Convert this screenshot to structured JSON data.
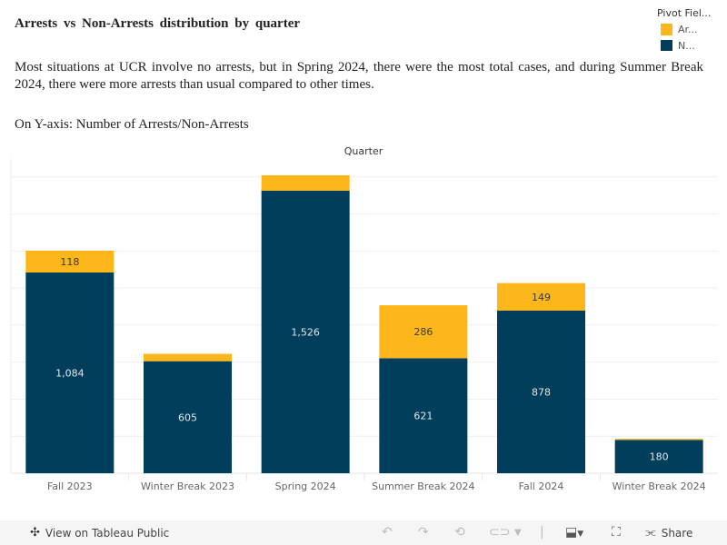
{
  "title": "Arrests vs Non-Arrests distribution by quarter",
  "description": "Most situations at UCR involve no arrests, but in Spring 2024, there were the most total cases, and during Summer Break 2024, there were more arrests than usual compared to other times.",
  "y_axis_note": "On Y-axis: Number of Arrests/Non-Arrests",
  "legend": {
    "title": "Pivot Fiel...",
    "items": [
      {
        "label": "Ar...",
        "color": "#fdb71b"
      },
      {
        "label": "N...",
        "color": "#013e5b"
      }
    ]
  },
  "footer": {
    "view_label": "View on Tableau Public",
    "view_icon": "tableau-logo-icon",
    "share_label": "Share",
    "icons": [
      "undo-icon",
      "redo-icon",
      "revert-icon",
      "refresh-icon",
      "dropdown-caret-icon",
      "download-icon",
      "fullscreen-icon",
      "share-icon"
    ]
  },
  "chart_data": {
    "type": "bar",
    "stacked": true,
    "title": "",
    "column_header": "Quarter",
    "xlabel": "",
    "ylabel": "",
    "categories": [
      "Fall 2023",
      "Winter Break 2023",
      "Spring 2024",
      "Summer Break 2024",
      "Fall 2024",
      "Winter Break 2024"
    ],
    "series": [
      {
        "name": "Non-Arrests",
        "color": "#013e5b",
        "values": [
          1084,
          605,
          1526,
          621,
          878,
          180
        ],
        "labels": [
          "1,084",
          "605",
          "1,526",
          "621",
          "878",
          "180"
        ]
      },
      {
        "name": "Arrests",
        "color": "#fdb71b",
        "values": [
          118,
          40,
          83,
          286,
          149,
          6
        ],
        "labels": [
          "118",
          "",
          "",
          "286",
          "149",
          ""
        ]
      }
    ],
    "ylim": [
      0,
      1700
    ],
    "gridline_step": 200,
    "grid": true,
    "legend": "top-right"
  }
}
